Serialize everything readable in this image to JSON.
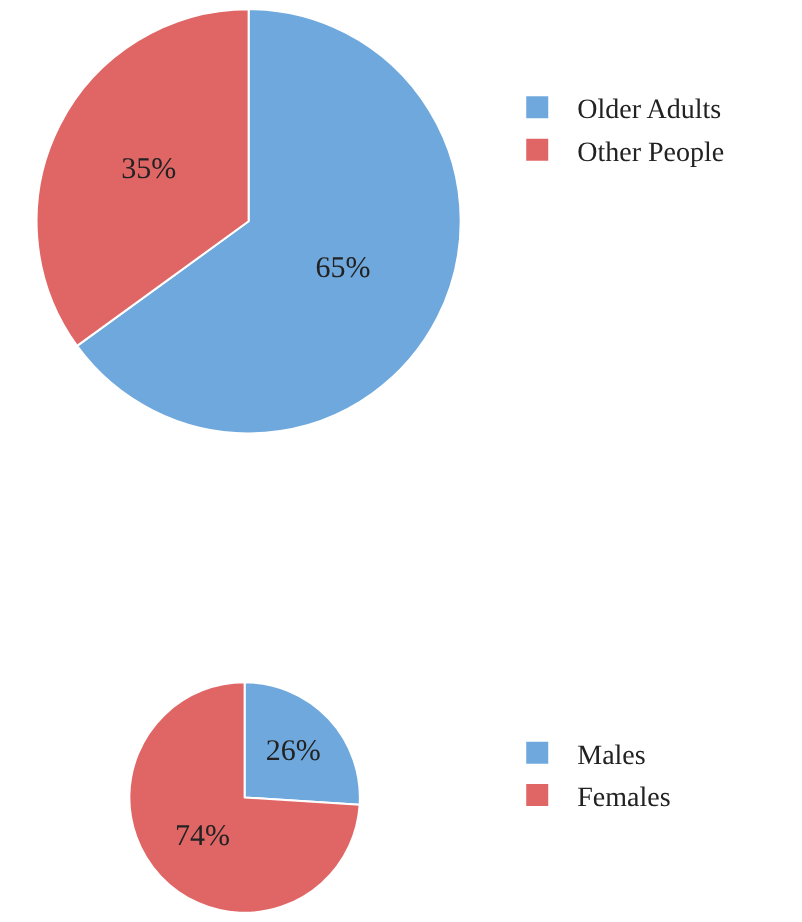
{
  "chart_data": [
    {
      "type": "pie",
      "categories": [
        "Older Adults",
        "Other People"
      ],
      "values": [
        65,
        35
      ],
      "colors": [
        "#6fa8dc",
        "#e06666"
      ],
      "value_labels": [
        "65%",
        "35%"
      ],
      "legend": "right"
    },
    {
      "type": "pie",
      "categories": [
        "Males",
        "Females"
      ],
      "values": [
        26,
        74
      ],
      "colors": [
        "#6fa8dc",
        "#e06666"
      ],
      "value_labels": [
        "26%",
        "74%"
      ],
      "legend": "right"
    }
  ]
}
